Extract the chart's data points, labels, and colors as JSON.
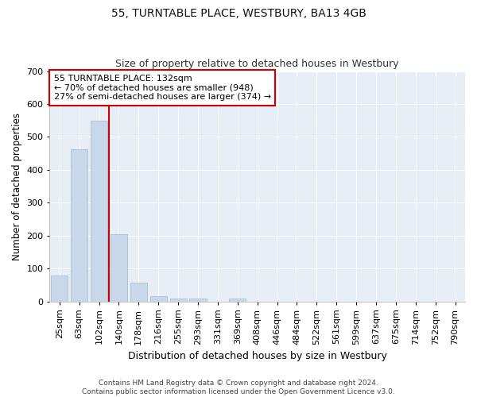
{
  "title": "55, TURNTABLE PLACE, WESTBURY, BA13 4GB",
  "subtitle": "Size of property relative to detached houses in Westbury",
  "xlabel": "Distribution of detached houses by size in Westbury",
  "ylabel": "Number of detached properties",
  "bar_color": "#c8d8ea",
  "bar_edge_color": "#a0b8cc",
  "background_color": "#e8eef5",
  "grid_color": "#ffffff",
  "fig_background": "#ffffff",
  "categories": [
    "25sqm",
    "63sqm",
    "102sqm",
    "140sqm",
    "178sqm",
    "216sqm",
    "255sqm",
    "293sqm",
    "331sqm",
    "369sqm",
    "408sqm",
    "446sqm",
    "484sqm",
    "522sqm",
    "561sqm",
    "599sqm",
    "637sqm",
    "675sqm",
    "714sqm",
    "752sqm",
    "790sqm"
  ],
  "values": [
    78,
    462,
    549,
    203,
    57,
    15,
    9,
    9,
    0,
    8,
    0,
    0,
    0,
    0,
    0,
    0,
    0,
    0,
    0,
    0,
    0
  ],
  "ylim": [
    0,
    700
  ],
  "yticks": [
    0,
    100,
    200,
    300,
    400,
    500,
    600,
    700
  ],
  "property_line_x": 2.5,
  "annotation_text": "55 TURNTABLE PLACE: 132sqm\n← 70% of detached houses are smaller (948)\n27% of semi-detached houses are larger (374) →",
  "annotation_box_color": "#ffffff",
  "annotation_box_edge": "#cc0000",
  "property_line_color": "#cc0000",
  "title_fontsize": 10,
  "subtitle_fontsize": 9,
  "footnote": "Contains HM Land Registry data © Crown copyright and database right 2024.\nContains public sector information licensed under the Open Government Licence v3.0."
}
